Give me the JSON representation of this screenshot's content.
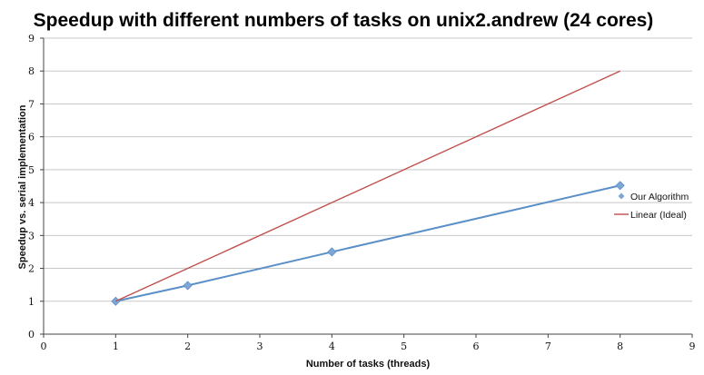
{
  "chart_data": {
    "type": "line",
    "title": "Speedup with different numbers of tasks on unix2.andrew (24 cores)",
    "xlabel": "Number of tasks (threads)",
    "ylabel": "Speedup vs. serial implementation",
    "xlim": [
      0,
      9
    ],
    "ylim": [
      0,
      9
    ],
    "xticks": [
      "0",
      "1",
      "2",
      "3",
      "4",
      "5",
      "6",
      "7",
      "8",
      "9"
    ],
    "yticks": [
      "0",
      "1",
      "2",
      "3",
      "4",
      "5",
      "6",
      "7",
      "8",
      "9"
    ],
    "grid": "horizontal",
    "legend_position": "right",
    "series": [
      {
        "name": "Our Algorithm",
        "color": "#7ea6d6",
        "line_color": "#5b8fc7",
        "marker": "diamond",
        "x": [
          1,
          2,
          4,
          8
        ],
        "y": [
          1.0,
          1.48,
          2.5,
          4.52
        ]
      },
      {
        "name": "Linear (Ideal)",
        "color": "#c0504d",
        "marker": "none",
        "x": [
          1,
          8
        ],
        "y": [
          1,
          8
        ]
      }
    ]
  }
}
